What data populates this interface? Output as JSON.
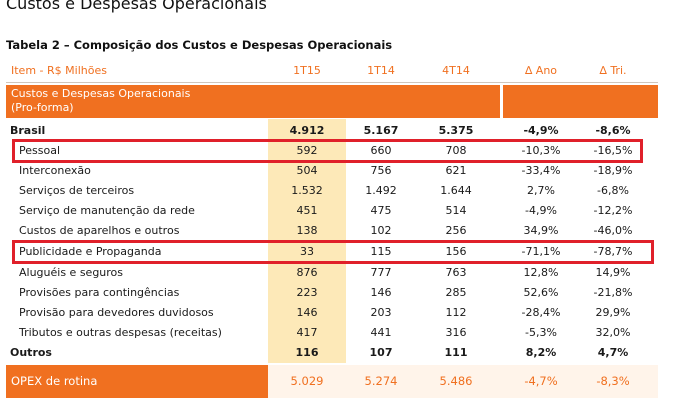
{
  "page_heading": "Custos e Despesas Operacionais",
  "table_caption": "Tabela 2 – Composição dos Custos e Despesas Operacionais",
  "columns": [
    "Item - R$ Milhões",
    "1T15",
    "1T14",
    "4T14",
    "∆ Ano",
    "∆ Tri."
  ],
  "section_band": {
    "line1": "Custos e Despesas Operacionais",
    "line2": "(Pro-forma)"
  },
  "rows": [
    {
      "label": "Brasil",
      "v": [
        "4.912",
        "5.167",
        "5.375",
        "-4,9%",
        "-8,6%"
      ]
    },
    {
      "label": "Pessoal",
      "v": [
        "592",
        "660",
        "708",
        "-10,3%",
        "-16,5%"
      ]
    },
    {
      "label": "Interconexão",
      "v": [
        "504",
        "756",
        "621",
        "-33,4%",
        "-18,9%"
      ]
    },
    {
      "label": "Serviços de terceiros",
      "v": [
        "1.532",
        "1.492",
        "1.644",
        "2,7%",
        "-6,8%"
      ]
    },
    {
      "label": "Serviço de manutenção da rede",
      "v": [
        "451",
        "475",
        "514",
        "-4,9%",
        "-12,2%"
      ]
    },
    {
      "label": "Custos de aparelhos e outros",
      "v": [
        "138",
        "102",
        "256",
        "34,9%",
        "-46,0%"
      ]
    },
    {
      "label": "Publicidade e Propaganda",
      "v": [
        "33",
        "115",
        "156",
        "-71,1%",
        "-78,7%"
      ]
    },
    {
      "label": "Aluguéis e seguros",
      "v": [
        "876",
        "777",
        "763",
        "12,8%",
        "14,9%"
      ]
    },
    {
      "label": "Provisões para contingências",
      "v": [
        "223",
        "146",
        "285",
        "52,6%",
        "-21,8%"
      ]
    },
    {
      "label": "Provisão para devedores duvidosos",
      "v": [
        "146",
        "203",
        "112",
        "-28,4%",
        "29,9%"
      ]
    },
    {
      "label": "Tributos e outras despesas (receitas)",
      "v": [
        "417",
        "441",
        "316",
        "-5,3%",
        "32,0%"
      ]
    },
    {
      "label": "Outros",
      "v": [
        "116",
        "107",
        "111",
        "8,2%",
        "4,7%"
      ]
    }
  ],
  "footer": {
    "label": "OPEX de rotina",
    "v": [
      "5.029",
      "5.274",
      "5.486",
      "-4,7%",
      "-8,3%"
    ]
  }
}
